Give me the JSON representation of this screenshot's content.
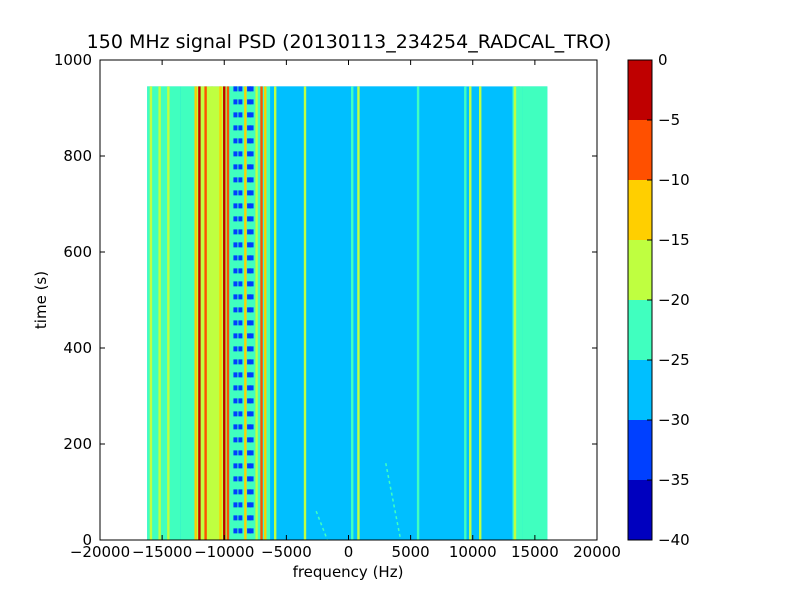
{
  "chart_data": {
    "type": "heatmap",
    "title": "150 MHz signal PSD (20130113_234254_RADCAL_TRO)",
    "xlabel": "frequency (Hz)",
    "ylabel": "time (s)",
    "xlim": [
      -20000,
      20000
    ],
    "ylim": [
      0,
      1000
    ],
    "x_ticks": [
      -20000,
      -15000,
      -10000,
      -5000,
      0,
      5000,
      10000,
      15000,
      20000
    ],
    "x_tick_labels": [
      "−20000",
      "−15000",
      "−10000",
      "−5000",
      "0",
      "5000",
      "10000",
      "15000",
      "20000"
    ],
    "y_ticks": [
      0,
      200,
      400,
      600,
      800,
      1000
    ],
    "y_tick_labels": [
      "0",
      "200",
      "400",
      "600",
      "800",
      "1000"
    ],
    "data_extent": {
      "x": [
        -16200,
        16000
      ],
      "y": [
        0,
        945
      ]
    },
    "background_level": -27.5,
    "colorbar": {
      "levels": [
        -40,
        -35,
        -30,
        -25,
        -20,
        -15,
        -10,
        -5,
        0
      ],
      "level_labels": [
        "−40",
        "−35",
        "−30",
        "−25",
        "−20",
        "−15",
        "−10",
        "−5",
        "0"
      ],
      "colors": [
        "#0000bf",
        "#0040ff",
        "#00bfff",
        "#40ffbf",
        "#bfff40",
        "#ffcf00",
        "#ff5000",
        "#bf0000"
      ]
    },
    "regions": [
      {
        "x": [
          -16200,
          -13500
        ],
        "level": -22.5
      },
      {
        "x": [
          -13500,
          -12200
        ],
        "level": -22.5
      },
      {
        "x": [
          -12200,
          -9800
        ],
        "level": -17.5
      },
      {
        "x": [
          -9800,
          -7500
        ],
        "level": -22.5
      },
      {
        "x": [
          -7500,
          -6300
        ],
        "level": -22.5
      },
      {
        "x": [
          -6300,
          -3500
        ],
        "level": -27.5
      },
      {
        "x": [
          -3500,
          9400
        ],
        "level": -27.5
      },
      {
        "x": [
          13200,
          14000
        ],
        "level": -22.5
      },
      {
        "x": [
          14000,
          16000
        ],
        "level": -22.5
      }
    ],
    "lines": [
      {
        "x": -15900,
        "level": -17.5
      },
      {
        "x": -15200,
        "level": -17.5
      },
      {
        "x": -14500,
        "level": -17.5
      },
      {
        "x": -12300,
        "level": -12.5
      },
      {
        "x": -12000,
        "level": -2.5
      },
      {
        "x": -11500,
        "level": -7.5
      },
      {
        "x": -11000,
        "level": -17.5
      },
      {
        "x": -10300,
        "level": -12.5
      },
      {
        "x": -10000,
        "level": -2.5
      },
      {
        "x": -9700,
        "level": -7.5
      },
      {
        "x": -8300,
        "level": -12.5
      },
      {
        "x": -7400,
        "level": -17.5
      },
      {
        "x": -7000,
        "level": -7.5
      },
      {
        "x": -6700,
        "level": -12.5
      },
      {
        "x": -5900,
        "level": -17.5
      },
      {
        "x": -3500,
        "level": -17.5
      },
      {
        "x": 300,
        "level": -22.5
      },
      {
        "x": 800,
        "level": -17.5
      },
      {
        "x": 5600,
        "level": -22.5
      },
      {
        "x": 9400,
        "level": -22.5
      },
      {
        "x": 9800,
        "level": -17.5
      },
      {
        "x": 10600,
        "level": -17.5
      },
      {
        "x": 13400,
        "level": -17.5
      },
      {
        "x": 13700,
        "level": -22.5
      }
    ],
    "dotted_columns": [
      {
        "x": -9100,
        "level": -32.5
      },
      {
        "x": -8700,
        "level": -32.5
      },
      {
        "x": -8000,
        "level": -32.5
      },
      {
        "x": -7800,
        "level": -32.5
      }
    ],
    "drift_traces": [
      {
        "x": [
          3000,
          4200
        ],
        "y": [
          160,
          0
        ],
        "level": -22.5
      },
      {
        "x": [
          -2600,
          -1700
        ],
        "y": [
          60,
          0
        ],
        "level": -22.5
      }
    ]
  }
}
